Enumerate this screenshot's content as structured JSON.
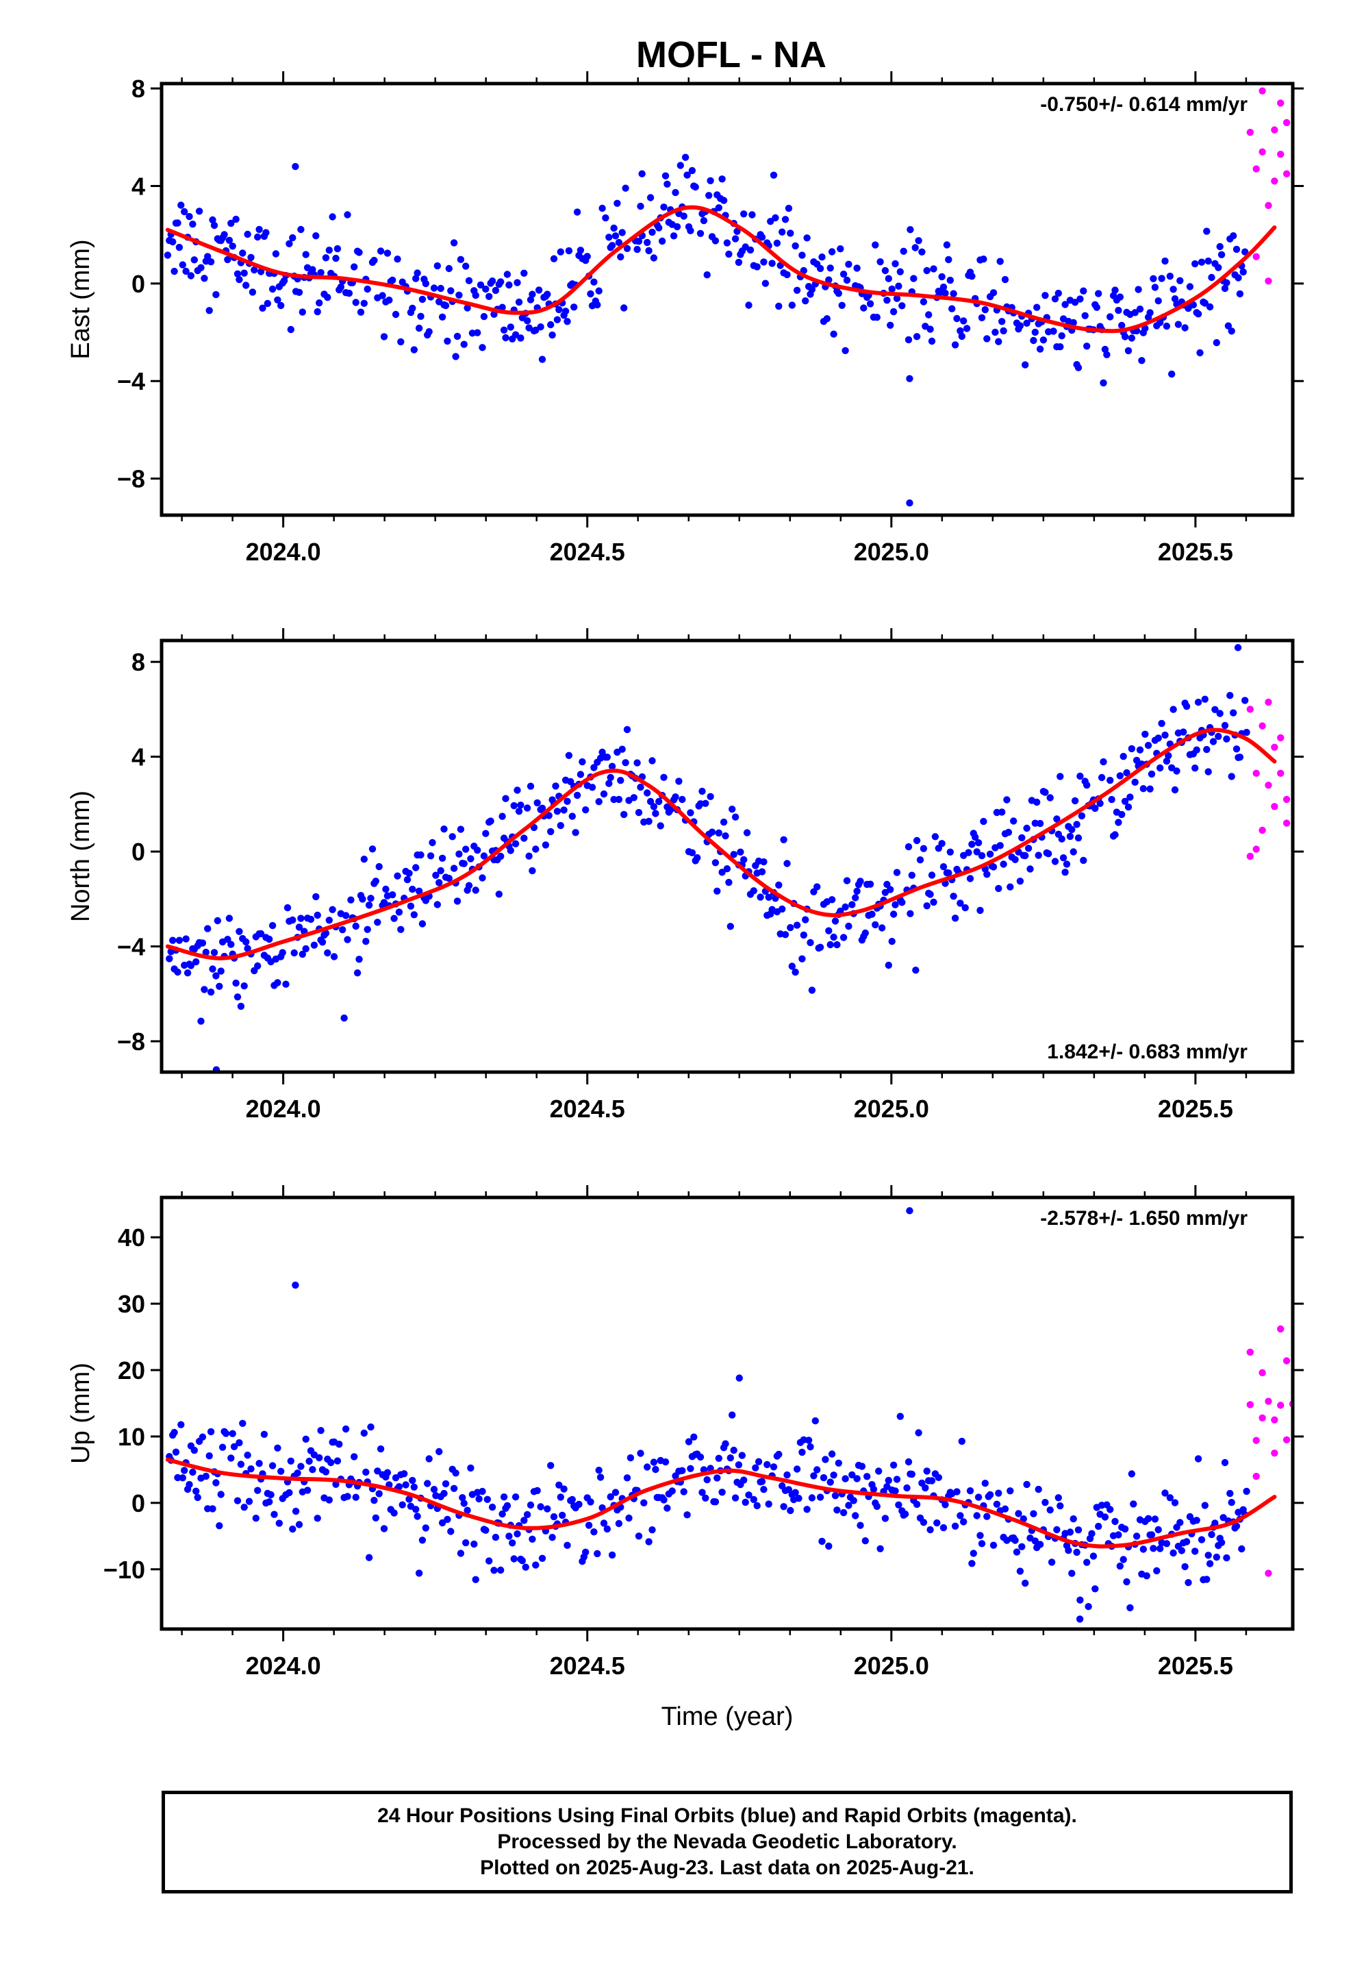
{
  "title": "MOFL - NA",
  "colors": {
    "final": "#0000ff",
    "rapid": "#ff00ff",
    "fit": "#ff0000",
    "axis": "#000000"
  },
  "footer": {
    "line1": "24 Hour Positions Using Final Orbits (blue) and Rapid Orbits (magenta).",
    "line2": "Processed by the Nevada Geodetic Laboratory.",
    "line3": "Plotted on 2025-Aug-23. Last data on 2025-Aug-21."
  },
  "chart_data": [
    {
      "type": "scatter",
      "name": "east",
      "ylabel": "East (mm)",
      "xlabel": "",
      "xlim": [
        2023.8,
        2025.66
      ],
      "ylim": [
        -9.5,
        8.2
      ],
      "yticks": [
        8,
        4,
        0,
        -4,
        -8
      ],
      "ytick_labels": [
        "8",
        "4",
        "0",
        "−4",
        "−8"
      ],
      "xticks": [
        2024.0,
        2024.5,
        2025.0,
        2025.5
      ],
      "xtick_labels": [
        "2024.0",
        "2024.5",
        "2025.0",
        "2025.5"
      ],
      "rate_label": "-0.750+/- 0.614 mm/yr",
      "rate_position": "top-right",
      "fit_points": [
        [
          2023.81,
          2.2
        ],
        [
          2023.9,
          1.3
        ],
        [
          2024.0,
          0.4
        ],
        [
          2024.1,
          0.2
        ],
        [
          2024.2,
          -0.2
        ],
        [
          2024.3,
          -0.8
        ],
        [
          2024.38,
          -1.2
        ],
        [
          2024.45,
          -0.8
        ],
        [
          2024.55,
          1.4
        ],
        [
          2024.66,
          3.1
        ],
        [
          2024.75,
          2.3
        ],
        [
          2024.85,
          0.4
        ],
        [
          2024.95,
          -0.3
        ],
        [
          2025.05,
          -0.5
        ],
        [
          2025.15,
          -0.8
        ],
        [
          2025.25,
          -1.5
        ],
        [
          2025.33,
          -1.9
        ],
        [
          2025.4,
          -1.8
        ],
        [
          2025.5,
          -0.6
        ],
        [
          2025.58,
          1.0
        ],
        [
          2025.63,
          2.3
        ]
      ],
      "outliers": [
        [
          2024.02,
          4.8
        ],
        [
          2025.03,
          -3.9
        ],
        [
          2025.03,
          -9.0
        ],
        [
          2024.59,
          4.5
        ]
      ],
      "rapid_points": [
        [
          2025.59,
          6.2
        ],
        [
          2025.6,
          1.1
        ],
        [
          2025.6,
          4.7
        ],
        [
          2025.61,
          7.9
        ],
        [
          2025.61,
          5.4
        ],
        [
          2025.62,
          3.2
        ],
        [
          2025.62,
          0.1
        ],
        [
          2025.63,
          6.3
        ],
        [
          2025.63,
          4.2
        ],
        [
          2025.64,
          7.4
        ],
        [
          2025.64,
          5.3
        ],
        [
          2025.65,
          4.5
        ],
        [
          2025.65,
          6.6
        ]
      ]
    },
    {
      "type": "scatter",
      "name": "north",
      "ylabel": "North (mm)",
      "xlabel": "",
      "xlim": [
        2023.8,
        2025.66
      ],
      "ylim": [
        -9.3,
        8.9
      ],
      "yticks": [
        8,
        4,
        0,
        -4,
        -8
      ],
      "ytick_labels": [
        "8",
        "4",
        "0",
        "−4",
        "−8"
      ],
      "xticks": [
        2024.0,
        2024.5,
        2025.0,
        2025.5
      ],
      "xtick_labels": [
        "2024.0",
        "2024.5",
        "2025.0",
        "2025.5"
      ],
      "rate_label": "1.842+/- 0.683 mm/yr",
      "rate_position": "bottom-right",
      "fit_points": [
        [
          2023.81,
          -4.0
        ],
        [
          2023.9,
          -4.5
        ],
        [
          2024.0,
          -3.8
        ],
        [
          2024.1,
          -3.0
        ],
        [
          2024.2,
          -2.1
        ],
        [
          2024.3,
          -1.0
        ],
        [
          2024.4,
          1.0
        ],
        [
          2024.52,
          3.3
        ],
        [
          2024.6,
          2.8
        ],
        [
          2024.7,
          0.5
        ],
        [
          2024.8,
          -1.6
        ],
        [
          2024.88,
          -2.6
        ],
        [
          2024.95,
          -2.5
        ],
        [
          2025.05,
          -1.5
        ],
        [
          2025.15,
          -0.6
        ],
        [
          2025.25,
          0.8
        ],
        [
          2025.35,
          2.4
        ],
        [
          2025.45,
          4.2
        ],
        [
          2025.52,
          5.1
        ],
        [
          2025.58,
          4.8
        ],
        [
          2025.63,
          3.8
        ]
      ],
      "outliers": [
        [
          2025.04,
          -5.0
        ],
        [
          2025.57,
          8.6
        ],
        [
          2023.89,
          -9.2
        ]
      ],
      "rapid_points": [
        [
          2025.59,
          6.0
        ],
        [
          2025.59,
          -0.2
        ],
        [
          2025.6,
          3.3
        ],
        [
          2025.6,
          0.1
        ],
        [
          2025.61,
          5.3
        ],
        [
          2025.61,
          0.9
        ],
        [
          2025.62,
          6.3
        ],
        [
          2025.62,
          2.8
        ],
        [
          2025.63,
          4.4
        ],
        [
          2025.63,
          1.9
        ],
        [
          2025.64,
          3.3
        ],
        [
          2025.64,
          4.8
        ],
        [
          2025.65,
          2.2
        ],
        [
          2025.65,
          1.2
        ]
      ]
    },
    {
      "type": "scatter",
      "name": "up",
      "ylabel": "Up (mm)",
      "xlabel": "Time (year)",
      "xlim": [
        2023.8,
        2025.66
      ],
      "ylim": [
        -19,
        46
      ],
      "yticks": [
        40,
        30,
        20,
        10,
        0,
        -10
      ],
      "ytick_labels": [
        "40",
        "30",
        "20",
        "10",
        "0",
        "−10"
      ],
      "xticks": [
        2024.0,
        2024.5,
        2025.0,
        2025.5
      ],
      "xtick_labels": [
        "2024.0",
        "2024.5",
        "2025.0",
        "2025.5"
      ],
      "rate_label": "-2.578+/- 1.650 mm/yr",
      "rate_position": "top-right",
      "fit_points": [
        [
          2023.81,
          6.5
        ],
        [
          2023.9,
          4.5
        ],
        [
          2024.0,
          3.7
        ],
        [
          2024.1,
          3.3
        ],
        [
          2024.2,
          1.5
        ],
        [
          2024.3,
          -1.8
        ],
        [
          2024.4,
          -3.8
        ],
        [
          2024.5,
          -2.4
        ],
        [
          2024.6,
          2.0
        ],
        [
          2024.72,
          4.8
        ],
        [
          2024.8,
          3.8
        ],
        [
          2024.9,
          2.0
        ],
        [
          2025.0,
          1.1
        ],
        [
          2025.1,
          0.4
        ],
        [
          2025.2,
          -2.5
        ],
        [
          2025.3,
          -6.0
        ],
        [
          2025.38,
          -6.4
        ],
        [
          2025.48,
          -4.5
        ],
        [
          2025.56,
          -3.0
        ],
        [
          2025.63,
          0.9
        ]
      ],
      "outliers": [
        [
          2024.02,
          32.8
        ],
        [
          2025.03,
          44.0
        ],
        [
          2024.75,
          18.8
        ],
        [
          2025.31,
          -17.5
        ]
      ],
      "rapid_points": [
        [
          2025.59,
          22.7
        ],
        [
          2025.59,
          14.8
        ],
        [
          2025.6,
          9.4
        ],
        [
          2025.6,
          4.0
        ],
        [
          2025.61,
          19.6
        ],
        [
          2025.61,
          12.8
        ],
        [
          2025.62,
          15.3
        ],
        [
          2025.62,
          -10.6
        ],
        [
          2025.63,
          7.5
        ],
        [
          2025.63,
          12.5
        ],
        [
          2025.64,
          26.2
        ],
        [
          2025.64,
          14.7
        ],
        [
          2025.65,
          21.4
        ],
        [
          2025.65,
          9.5
        ],
        [
          2025.66,
          14.9
        ]
      ]
    }
  ]
}
